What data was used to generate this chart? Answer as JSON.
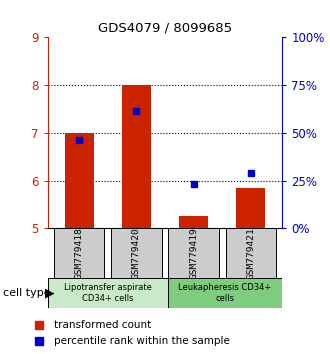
{
  "title": "GDS4079 / 8099685",
  "samples": [
    "GSM779418",
    "GSM779420",
    "GSM779419",
    "GSM779421"
  ],
  "bar_bottoms": [
    5,
    5,
    5,
    5
  ],
  "bar_tops": [
    7.0,
    8.0,
    5.25,
    5.85
  ],
  "percentile_values": [
    6.85,
    7.45,
    5.92,
    6.15
  ],
  "ylim": [
    5,
    9
  ],
  "y_left_ticks": [
    5,
    6,
    7,
    8,
    9
  ],
  "right_tick_positions": [
    5,
    6,
    7,
    8,
    9
  ],
  "right_tick_labels": [
    "0%",
    "25%",
    "50%",
    "75%",
    "100%"
  ],
  "bar_color": "#cc2200",
  "blue_color": "#0000cc",
  "group1_label": "Lipotransfer aspirate\nCD34+ cells",
  "group2_label": "Leukapheresis CD34+\ncells",
  "group1_color": "#c8eac8",
  "group2_color": "#7ecc7e",
  "sample_box_color": "#cccccc",
  "legend_red_label": "transformed count",
  "legend_blue_label": "percentile rank within the sample",
  "cell_type_label": "cell type",
  "bar_width": 0.5
}
